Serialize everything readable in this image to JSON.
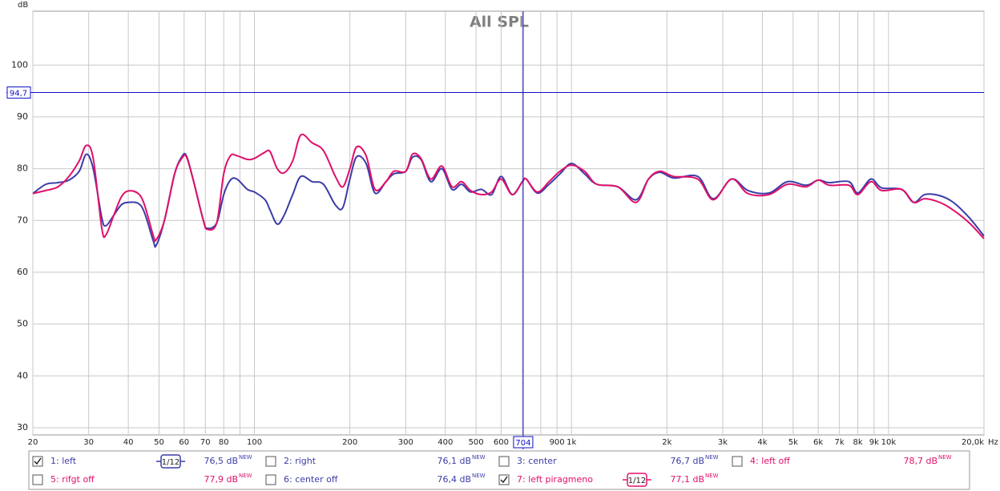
{
  "chart_data": {
    "type": "line",
    "title": "All SPL",
    "y_label": "dB",
    "x_label": "Hz",
    "log_x": true,
    "grid": true,
    "xlim": [
      20,
      20000
    ],
    "ylim": [
      28.6,
      110.4
    ],
    "yticks": [
      30,
      40,
      50,
      60,
      70,
      80,
      90,
      100
    ],
    "xticks": [
      20,
      30,
      40,
      50,
      60,
      70,
      80,
      100,
      200,
      300,
      400,
      500,
      600,
      900,
      {
        "value": 1000,
        "label": "1k"
      },
      {
        "value": 2000,
        "label": "2k"
      },
      {
        "value": 3000,
        "label": "3k"
      },
      {
        "value": 4000,
        "label": "4k"
      },
      {
        "value": 5000,
        "label": "5k"
      },
      {
        "value": 6000,
        "label": "6k"
      },
      {
        "value": 7000,
        "label": "7k"
      },
      {
        "value": 8000,
        "label": "8k"
      },
      {
        "value": 9000,
        "label": "9k"
      },
      {
        "value": 10000,
        "label": "10k"
      },
      {
        "value": 20000,
        "label": "20,0k"
      }
    ],
    "xgrid_minor": [
      90,
      700,
      800
    ],
    "cursor": {
      "x": 704,
      "y": {
        "value": 94.7,
        "label": "94,7"
      },
      "color": "#1010c8"
    },
    "x": [
      20,
      22,
      24,
      26,
      28,
      29.5,
      31,
      33,
      34,
      36,
      38,
      40,
      43,
      45,
      48,
      49,
      52,
      56,
      59,
      61,
      64,
      69,
      71,
      76,
      80,
      84,
      88,
      95,
      100,
      108,
      112,
      118,
      124,
      132,
      140,
      152,
      165,
      180,
      190,
      200,
      210,
      225,
      240,
      260,
      275,
      300,
      315,
      335,
      360,
      390,
      420,
      450,
      480,
      520,
      560,
      600,
      650,
      700,
      720,
      780,
      850,
      920,
      1000,
      1100,
      1200,
      1400,
      1600,
      1750,
      1900,
      2100,
      2500,
      2800,
      3200,
      3600,
      4200,
      4800,
      5500,
      6000,
      6500,
      7500,
      8000,
      8800,
      9500,
      11000,
      12000,
      13000,
      14500,
      16000,
      18000,
      20000
    ],
    "series": [
      {
        "name": "1: left",
        "color": "#3c3ca8",
        "checked": true,
        "smoothing": "1/12",
        "level": "76,5 dB",
        "tag": "NEW",
        "values": [
          75.2,
          77,
          77.3,
          77.8,
          79.5,
          82.8,
          80,
          70.5,
          69,
          71,
          73,
          73.5,
          73.3,
          71.5,
          66,
          65.2,
          70,
          79,
          82.3,
          82.5,
          78,
          70,
          68.5,
          69.5,
          75,
          77.8,
          78,
          76,
          75.5,
          74,
          72,
          69.3,
          71,
          75,
          78.5,
          77.5,
          77,
          73,
          72.5,
          78,
          82.3,
          81,
          75.3,
          77.5,
          79,
          79.5,
          82.2,
          81.8,
          77.5,
          80,
          76,
          77,
          75.5,
          76,
          75,
          78.5,
          75,
          77.5,
          78,
          75.3,
          77,
          79,
          81,
          79,
          77,
          76.5,
          74,
          78,
          79.3,
          78.2,
          78.5,
          74.2,
          78,
          75.8,
          75.3,
          77.5,
          76.8,
          77.8,
          77.3,
          77.5,
          75.3,
          78,
          76.3,
          76,
          73.5,
          75,
          74.8,
          73.5,
          70.5,
          67
        ]
      },
      {
        "name": "2: right",
        "color": "#3c3ca8",
        "checked": false,
        "level": "76,1 dB",
        "tag": "NEW"
      },
      {
        "name": "3: center",
        "color": "#3c3ca8",
        "checked": false,
        "level": "76,7 dB",
        "tag": "NEW"
      },
      {
        "name": "4: left off",
        "color": "#e0106a",
        "checked": false,
        "level": "78,7 dB",
        "tag": "NEW"
      },
      {
        "name": "5: rifgt off",
        "color": "#e0106a",
        "checked": false,
        "level": "77,9 dB",
        "tag": "NEW"
      },
      {
        "name": "6: center off",
        "color": "#3c3ca8",
        "checked": false,
        "level": "76,4 dB",
        "tag": "NEW"
      },
      {
        "name": "7: left piragmeno",
        "color": "#e0106a",
        "checked": true,
        "smoothing": "1/12",
        "level": "77,1 dB",
        "tag": "NEW",
        "values": [
          75.2,
          75.8,
          76.5,
          78.5,
          81.5,
          84.5,
          82,
          68.5,
          67.2,
          71,
          74.5,
          75.7,
          75.2,
          73,
          67,
          66.3,
          70,
          79,
          82,
          82.3,
          78,
          70,
          68.3,
          69.5,
          79,
          82.5,
          82.5,
          81.8,
          82,
          83.2,
          83.3,
          80,
          79.2,
          81.5,
          86.5,
          85,
          83.5,
          78.5,
          76.5,
          80,
          84.2,
          82.5,
          76,
          77.5,
          79.5,
          79.5,
          82.8,
          82,
          78,
          80.5,
          76.5,
          77.5,
          75.8,
          75,
          75.5,
          78,
          75,
          77.5,
          78,
          75.5,
          77.5,
          79.5,
          80.7,
          79.5,
          77,
          76.5,
          73.5,
          78,
          79.5,
          78.5,
          78,
          74,
          78,
          75.2,
          75,
          77,
          76.5,
          77.8,
          76.8,
          76.8,
          75,
          77.5,
          75.8,
          76,
          73.5,
          74.2,
          73.5,
          72,
          69.5,
          66.5
        ]
      }
    ]
  }
}
